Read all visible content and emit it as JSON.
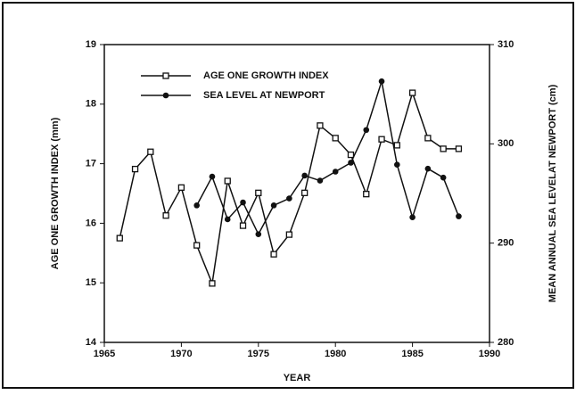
{
  "chart_data": {
    "type": "line",
    "xlabel": "YEAR",
    "ylabel": "AGE ONE GROWTH INDEX (mm)",
    "y2label": "MEAN ANNUAL SEA LEVELAT NEWPORT (cm)",
    "x": [
      1966,
      1967,
      1968,
      1969,
      1970,
      1971,
      1972,
      1973,
      1974,
      1975,
      1976,
      1977,
      1978,
      1979,
      1980,
      1981,
      1982,
      1983,
      1984,
      1985,
      1986,
      1987,
      1988
    ],
    "xlim": [
      1965,
      1990
    ],
    "xticks": [
      1965,
      1970,
      1975,
      1980,
      1985,
      1990
    ],
    "ylim": [
      14,
      19
    ],
    "yticks": [
      14,
      15,
      16,
      17,
      18,
      19
    ],
    "y2lim": [
      280,
      310
    ],
    "y2ticks": [
      280,
      290,
      300,
      310
    ],
    "legend": "upper left",
    "series": [
      {
        "name": "AGE ONE GROWTH INDEX",
        "color": "#111111",
        "marker": "square",
        "values": [
          15.75,
          16.91,
          17.2,
          16.13,
          16.6,
          15.63,
          14.99,
          16.71,
          15.96,
          16.51,
          15.48,
          15.81,
          16.51,
          17.64,
          17.43,
          17.15,
          16.49,
          17.41,
          17.31,
          18.19,
          17.43,
          17.25,
          17.25
        ]
      },
      {
        "name": "SEA LEVEL AT NEWPORT",
        "color": "#111111",
        "marker": "circle",
        "axis": "y2",
        "values": [
          null,
          null,
          null,
          null,
          null,
          293.8,
          296.7,
          292.4,
          294.1,
          290.9,
          293.8,
          294.5,
          296.8,
          296.3,
          297.2,
          298.1,
          301.4,
          306.3,
          297.9,
          292.6,
          297.5,
          296.6,
          292.7
        ]
      }
    ]
  }
}
